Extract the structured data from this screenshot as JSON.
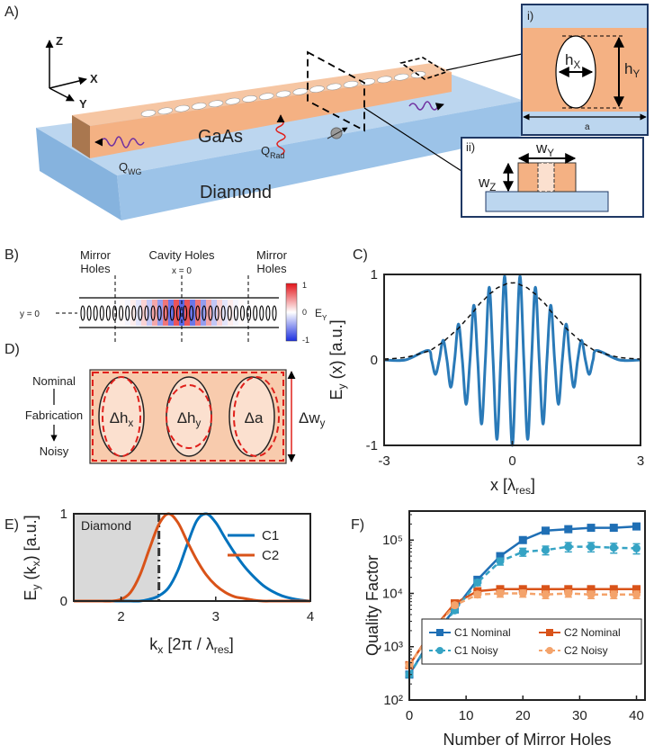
{
  "panel_a": {
    "label": "A)",
    "axes": [
      "Z",
      "X",
      "Y"
    ],
    "gaas": "GaAs",
    "diamond": "Diamond",
    "q_wg": [
      "Q",
      "WG"
    ],
    "q_rad": [
      "Q",
      "Rad"
    ],
    "inset_i": {
      "label": "i)",
      "hx": [
        "h",
        "X"
      ],
      "hy": [
        "h",
        "Y"
      ],
      "a": "a"
    },
    "inset_ii": {
      "label": "ii)",
      "wy": [
        "w",
        "Y"
      ],
      "wz": [
        "w",
        "Z"
      ]
    }
  },
  "panel_b": {
    "label": "B)",
    "mirror_left": [
      "Mirror",
      "Holes"
    ],
    "cavity": "Cavity Holes",
    "x0": "x = 0",
    "mirror_right": [
      "Mirror",
      "Holes"
    ],
    "y0": "y = 0",
    "colorbar_ticks": [
      "1",
      "0",
      "-1"
    ],
    "colorbar_label": [
      "E",
      "Y"
    ]
  },
  "panel_d": {
    "label": "D)",
    "nominal": "Nominal",
    "fabrication": "Fabrication",
    "noisy": "Noisy",
    "params": [
      [
        "Δh",
        "x"
      ],
      [
        "Δh",
        "y"
      ],
      "Δa"
    ],
    "width_param": [
      "Δw",
      "y"
    ]
  },
  "chart_data": [
    {
      "type": "line",
      "panel_label": "C)",
      "x": [
        -3,
        -2.5,
        -1.98,
        -1.89,
        -1.8,
        -1.71,
        -1.62,
        -1.53,
        -1.44,
        -1.35,
        -1.26,
        -1.17,
        -1.08,
        -0.99,
        -0.9,
        -0.81,
        -0.72,
        -0.63,
        -0.54,
        -0.45,
        -0.36,
        -0.27,
        -0.18,
        -0.09,
        0,
        0.09,
        0.18,
        0.27,
        0.36,
        0.45,
        0.54,
        0.63,
        0.72,
        0.81,
        0.9,
        0.99,
        1.08,
        1.17,
        1.26,
        1.35,
        1.44,
        1.53,
        1.62,
        1.71,
        1.8,
        1.89,
        1.98,
        2.5,
        3
      ],
      "series": [
        {
          "color": "#2a7ab8",
          "values": [
            0,
            0,
            0.11,
            0,
            -0.17,
            0,
            0.23,
            0,
            -0.32,
            0,
            0.42,
            0,
            -0.52,
            0,
            0.64,
            0,
            -0.75,
            0,
            0.85,
            0,
            -0.93,
            0,
            0.98,
            0,
            -1,
            0,
            0.98,
            0,
            -0.93,
            0,
            0.85,
            0,
            -0.75,
            0,
            0.64,
            0,
            -0.52,
            0,
            0.42,
            0,
            -0.32,
            0,
            0.23,
            0,
            -0.17,
            0,
            0.11,
            0,
            0
          ]
        },
        {
          "color": "#111111",
          "dash": true,
          "values": [
            0.01,
            0.03,
            0.1,
            0.12,
            0.15,
            0.18,
            0.21,
            0.25,
            0.29,
            0.33,
            0.37,
            0.42,
            0.47,
            0.52,
            0.57,
            0.63,
            0.68,
            0.72,
            0.77,
            0.8,
            0.84,
            0.86,
            0.88,
            0.9,
            0.9,
            0.9,
            0.88,
            0.86,
            0.84,
            0.8,
            0.77,
            0.72,
            0.68,
            0.63,
            0.57,
            0.52,
            0.47,
            0.42,
            0.37,
            0.33,
            0.29,
            0.25,
            0.21,
            0.18,
            0.15,
            0.12,
            0.1,
            0.03,
            0.01
          ]
        }
      ],
      "xlim": [
        -3,
        3
      ],
      "ylim": [
        -1,
        1
      ],
      "xticks": [
        -3,
        0,
        3
      ],
      "yticks": [
        -1,
        0,
        1
      ],
      "xlabel": [
        "x [λ",
        "res",
        "]"
      ],
      "ylabel": [
        "E",
        "y",
        " (x) [a.u.]"
      ]
    },
    {
      "type": "line",
      "panel_label": "E)",
      "x": [
        1.5,
        1.6,
        1.7,
        1.8,
        1.9,
        2.0,
        2.1,
        2.2,
        2.3,
        2.4,
        2.5,
        2.6,
        2.7,
        2.8,
        2.9,
        3.0,
        3.1,
        3.2,
        3.3,
        3.4,
        3.5,
        3.6,
        3.7,
        3.8,
        3.9,
        4.0
      ],
      "series": [
        {
          "name": "C1",
          "color": "#0072bd",
          "values": [
            0,
            0,
            0,
            0,
            0,
            0,
            0,
            0,
            0.02,
            0.06,
            0.15,
            0.35,
            0.65,
            0.92,
            1.0,
            0.9,
            0.72,
            0.55,
            0.4,
            0.28,
            0.18,
            0.11,
            0.06,
            0.03,
            0.01,
            0
          ]
        },
        {
          "name": "C2",
          "color": "#d95319",
          "values": [
            0,
            0,
            0,
            0,
            0,
            0.02,
            0.1,
            0.3,
            0.6,
            0.88,
            1.0,
            0.9,
            0.68,
            0.47,
            0.3,
            0.18,
            0.1,
            0.05,
            0.03,
            0.01,
            0,
            0,
            0,
            0,
            0,
            0
          ]
        }
      ],
      "shaded_region": {
        "label": "Diamond",
        "x": [
          1.5,
          2.4
        ]
      },
      "xlim": [
        1.5,
        4
      ],
      "ylim": [
        0,
        1
      ],
      "xticks": [
        2,
        3,
        4
      ],
      "yticks": [
        0,
        1
      ],
      "xlabel": [
        "k",
        "x",
        " [2π / λ",
        "res",
        "]"
      ],
      "ylabel": [
        "E",
        "y",
        " (k",
        "x",
        ") [a.u.]"
      ],
      "legend": "upper right"
    },
    {
      "type": "line",
      "panel_label": "F)",
      "x": [
        0,
        4,
        8,
        12,
        16,
        20,
        24,
        28,
        32,
        36,
        40
      ],
      "series": [
        {
          "name": "C1 Nominal",
          "color": "#1f6fb5",
          "marker": "square",
          "values": [
            300,
            1500,
            5000,
            18000,
            50000,
            100000,
            150000,
            160000,
            170000,
            170000,
            180000
          ]
        },
        {
          "name": "C2 Nominal",
          "color": "#d95319",
          "marker": "square",
          "values": [
            450,
            2000,
            6500,
            11000,
            12000,
            12000,
            12000,
            12000,
            12000,
            12000,
            12000
          ]
        },
        {
          "name": "C1 Noisy",
          "color": "#35a3c4",
          "marker": "circle",
          "dash": true,
          "values": [
            300,
            1400,
            4800,
            16000,
            40000,
            60000,
            65000,
            75000,
            75000,
            72000,
            70000
          ],
          "errors": [
            30,
            150,
            500,
            2000,
            6000,
            10000,
            12000,
            15000,
            15000,
            15000,
            15000
          ]
        },
        {
          "name": "C2 Noisy",
          "color": "#f4a36b",
          "marker": "circle",
          "dash": true,
          "values": [
            450,
            1900,
            6000,
            9500,
            10000,
            10000,
            9500,
            10000,
            9500,
            9500,
            9500
          ],
          "errors": [
            40,
            200,
            600,
            1200,
            1500,
            1500,
            1500,
            1500,
            1500,
            1500,
            1500
          ]
        }
      ],
      "xlim": [
        0,
        41.5
      ],
      "ylim": [
        100,
        350000
      ],
      "log_y": true,
      "xticks": [
        0,
        10,
        20,
        30,
        40
      ],
      "yticks": [
        {
          "value": 100,
          "label": "10²"
        },
        {
          "value": 1000,
          "label": "10³"
        },
        {
          "value": 10000,
          "label": "10⁴"
        },
        {
          "value": 100000,
          "label": "10⁵"
        }
      ],
      "xlabel": "Number of Mirror Holes",
      "ylabel": "Quality Factor",
      "legend": "lower right"
    }
  ]
}
